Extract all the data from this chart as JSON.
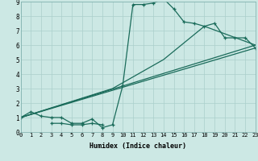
{
  "title": "",
  "xlabel": "Humidex (Indice chaleur)",
  "bg_color": "#cce8e4",
  "grid_color": "#aacfcb",
  "line_color": "#1a6b5a",
  "xlim": [
    0,
    23
  ],
  "ylim": [
    0,
    9
  ],
  "xticks": [
    0,
    1,
    2,
    3,
    4,
    5,
    6,
    7,
    8,
    9,
    10,
    11,
    12,
    13,
    14,
    15,
    16,
    17,
    18,
    19,
    20,
    21,
    22,
    23
  ],
  "yticks": [
    0,
    1,
    2,
    3,
    4,
    5,
    6,
    7,
    8,
    9
  ],
  "line1_x": [
    0,
    1,
    2,
    3,
    4,
    5,
    6,
    7,
    8,
    9,
    10,
    11,
    12,
    13,
    14,
    15,
    16,
    17,
    18,
    19,
    20,
    21,
    22,
    23
  ],
  "line1_y": [
    1.0,
    1.4,
    1.1,
    1.0,
    1.0,
    0.6,
    0.6,
    0.9,
    0.3,
    0.5,
    3.2,
    8.8,
    8.8,
    8.9,
    9.2,
    8.5,
    7.6,
    7.5,
    7.3,
    7.5,
    6.5,
    6.5,
    6.5,
    5.8
  ],
  "line1_extra_x": [
    3,
    4,
    5,
    6,
    7,
    8
  ],
  "line1_extra_y": [
    0.6,
    0.6,
    0.5,
    0.5,
    0.6,
    0.5
  ],
  "line2_x": [
    0,
    23
  ],
  "line2_y": [
    1.0,
    6.0
  ],
  "line3_x": [
    0,
    23
  ],
  "line3_y": [
    1.0,
    5.8
  ],
  "line4_x": [
    0,
    9,
    14,
    18,
    23
  ],
  "line4_y": [
    1.0,
    3.0,
    5.0,
    7.3,
    6.0
  ]
}
